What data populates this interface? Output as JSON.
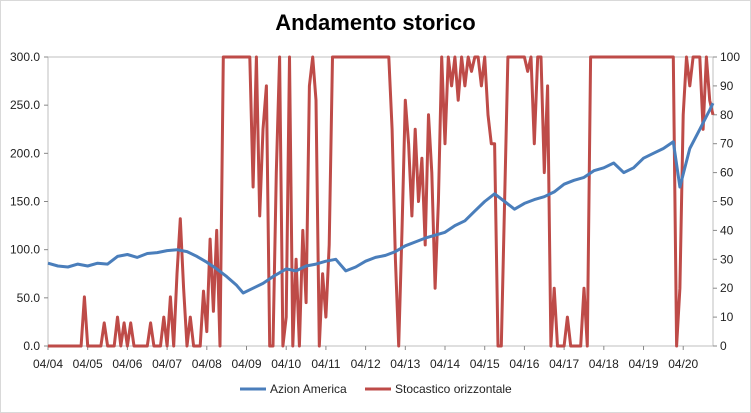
{
  "chart_data": {
    "type": "line",
    "title": "Andamento storico",
    "xlabel": "",
    "ylabel": "",
    "x_ticks": [
      "04/04",
      "04/05",
      "04/06",
      "04/07",
      "04/08",
      "04/09",
      "04/10",
      "04/11",
      "04/12",
      "04/13",
      "04/14",
      "04/15",
      "04/16",
      "04/17",
      "04/18",
      "04/19",
      "04/20"
    ],
    "x_range": [
      "04/04",
      "01/21"
    ],
    "y_left": {
      "min": 0,
      "max": 300,
      "ticks": [
        "0.0",
        "50.0",
        "100.0",
        "150.0",
        "200.0",
        "250.0",
        "300.0"
      ]
    },
    "y_right": {
      "min": 0,
      "max": 100,
      "ticks": [
        "0",
        "10",
        "20",
        "30",
        "40",
        "50",
        "60",
        "70",
        "80",
        "90",
        "100"
      ]
    },
    "legend_position": "bottom",
    "series": [
      {
        "name": "Azion America",
        "axis": "left",
        "color": "#4a7ebb",
        "points": [
          [
            "04/04",
            86
          ],
          [
            "07/04",
            83
          ],
          [
            "10/04",
            82
          ],
          [
            "01/05",
            85
          ],
          [
            "04/05",
            83
          ],
          [
            "07/05",
            86
          ],
          [
            "10/05",
            85
          ],
          [
            "01/06",
            93
          ],
          [
            "04/06",
            95
          ],
          [
            "07/06",
            92
          ],
          [
            "10/06",
            96
          ],
          [
            "01/07",
            97
          ],
          [
            "04/07",
            99
          ],
          [
            "07/07",
            100
          ],
          [
            "10/07",
            98
          ],
          [
            "01/08",
            93
          ],
          [
            "04/08",
            87
          ],
          [
            "07/08",
            80
          ],
          [
            "10/08",
            72
          ],
          [
            "01/09",
            63
          ],
          [
            "03/09",
            55
          ],
          [
            "06/09",
            60
          ],
          [
            "09/09",
            65
          ],
          [
            "12/09",
            72
          ],
          [
            "04/10",
            80
          ],
          [
            "07/10",
            78
          ],
          [
            "10/10",
            83
          ],
          [
            "01/11",
            85
          ],
          [
            "04/11",
            88
          ],
          [
            "07/11",
            90
          ],
          [
            "10/11",
            78
          ],
          [
            "01/12",
            82
          ],
          [
            "04/12",
            88
          ],
          [
            "07/12",
            92
          ],
          [
            "10/12",
            94
          ],
          [
            "01/13",
            98
          ],
          [
            "04/13",
            104
          ],
          [
            "07/13",
            108
          ],
          [
            "10/13",
            112
          ],
          [
            "01/14",
            115
          ],
          [
            "04/14",
            118
          ],
          [
            "07/14",
            125
          ],
          [
            "10/14",
            130
          ],
          [
            "01/15",
            140
          ],
          [
            "04/15",
            150
          ],
          [
            "07/15",
            158
          ],
          [
            "10/15",
            150
          ],
          [
            "01/16",
            142
          ],
          [
            "04/16",
            148
          ],
          [
            "07/16",
            152
          ],
          [
            "10/16",
            155
          ],
          [
            "01/17",
            160
          ],
          [
            "04/17",
            168
          ],
          [
            "07/17",
            172
          ],
          [
            "10/17",
            175
          ],
          [
            "01/18",
            182
          ],
          [
            "04/18",
            185
          ],
          [
            "07/18",
            190
          ],
          [
            "10/18",
            180
          ],
          [
            "01/19",
            185
          ],
          [
            "04/19",
            195
          ],
          [
            "07/19",
            200
          ],
          [
            "10/19",
            205
          ],
          [
            "01/20",
            212
          ],
          [
            "03/20",
            165
          ],
          [
            "06/20",
            205
          ],
          [
            "09/20",
            225
          ],
          [
            "12/20",
            245
          ],
          [
            "01/21",
            252
          ]
        ]
      },
      {
        "name": "Stocastico orizzontale",
        "axis": "right",
        "color": "#be4b48",
        "points": [
          [
            "04/04",
            0
          ],
          [
            "02/05",
            0
          ],
          [
            "03/05",
            17
          ],
          [
            "04/05",
            0
          ],
          [
            "08/05",
            0
          ],
          [
            "09/05",
            8
          ],
          [
            "10/05",
            0
          ],
          [
            "12/05",
            0
          ],
          [
            "01/06",
            10
          ],
          [
            "02/06",
            0
          ],
          [
            "03/06",
            8
          ],
          [
            "04/06",
            0
          ],
          [
            "05/06",
            8
          ],
          [
            "06/06",
            0
          ],
          [
            "10/06",
            0
          ],
          [
            "11/06",
            8
          ],
          [
            "12/06",
            0
          ],
          [
            "02/07",
            0
          ],
          [
            "03/07",
            10
          ],
          [
            "04/07",
            0
          ],
          [
            "05/07",
            17
          ],
          [
            "06/07",
            0
          ],
          [
            "07/07",
            25
          ],
          [
            "08/07",
            44
          ],
          [
            "09/07",
            20
          ],
          [
            "10/07",
            0
          ],
          [
            "11/07",
            10
          ],
          [
            "12/07",
            0
          ],
          [
            "02/08",
            0
          ],
          [
            "03/08",
            19
          ],
          [
            "04/08",
            5
          ],
          [
            "05/08",
            37
          ],
          [
            "06/08",
            12
          ],
          [
            "07/08",
            40
          ],
          [
            "08/08",
            0
          ],
          [
            "09/08",
            100
          ],
          [
            "05/09",
            100
          ],
          [
            "06/09",
            55
          ],
          [
            "07/09",
            100
          ],
          [
            "08/09",
            45
          ],
          [
            "09/09",
            75
          ],
          [
            "10/09",
            90
          ],
          [
            "11/09",
            0
          ],
          [
            "12/09",
            0
          ],
          [
            "01/10",
            60
          ],
          [
            "02/10",
            100
          ],
          [
            "03/10",
            0
          ],
          [
            "04/10",
            10
          ],
          [
            "05/10",
            100
          ],
          [
            "06/10",
            0
          ],
          [
            "07/10",
            30
          ],
          [
            "08/10",
            0
          ],
          [
            "09/10",
            40
          ],
          [
            "10/10",
            15
          ],
          [
            "11/10",
            90
          ],
          [
            "12/10",
            100
          ],
          [
            "01/11",
            85
          ],
          [
            "02/11",
            0
          ],
          [
            "03/11",
            25
          ],
          [
            "04/11",
            10
          ],
          [
            "05/11",
            35
          ],
          [
            "06/11",
            100
          ],
          [
            "07/11",
            100
          ],
          [
            "10/11",
            100
          ],
          [
            "11/11",
            100
          ],
          [
            "12/11",
            100
          ],
          [
            "01/12",
            100
          ],
          [
            "02/12",
            100
          ],
          [
            "03/12",
            100
          ],
          [
            "04/12",
            100
          ],
          [
            "05/12",
            100
          ],
          [
            "06/12",
            100
          ],
          [
            "07/12",
            100
          ],
          [
            "08/12",
            100
          ],
          [
            "09/12",
            100
          ],
          [
            "10/12",
            100
          ],
          [
            "11/12",
            100
          ],
          [
            "12/12",
            75
          ],
          [
            "01/13",
            30
          ],
          [
            "02/13",
            0
          ],
          [
            "03/13",
            40
          ],
          [
            "04/13",
            85
          ],
          [
            "05/13",
            70
          ],
          [
            "06/13",
            45
          ],
          [
            "07/13",
            75
          ],
          [
            "08/13",
            50
          ],
          [
            "09/13",
            65
          ],
          [
            "10/13",
            35
          ],
          [
            "11/13",
            80
          ],
          [
            "12/13",
            60
          ],
          [
            "01/14",
            20
          ],
          [
            "02/14",
            50
          ],
          [
            "03/14",
            100
          ],
          [
            "04/14",
            70
          ],
          [
            "05/14",
            100
          ],
          [
            "06/14",
            90
          ],
          [
            "07/14",
            100
          ],
          [
            "08/14",
            85
          ],
          [
            "09/14",
            100
          ],
          [
            "10/14",
            90
          ],
          [
            "11/14",
            100
          ],
          [
            "12/14",
            95
          ],
          [
            "01/15",
            100
          ],
          [
            "02/15",
            100
          ],
          [
            "03/15",
            90
          ],
          [
            "04/15",
            100
          ],
          [
            "05/15",
            80
          ],
          [
            "06/15",
            70
          ],
          [
            "07/15",
            70
          ],
          [
            "08/15",
            0
          ],
          [
            "09/15",
            0
          ],
          [
            "10/15",
            50
          ],
          [
            "11/15",
            100
          ],
          [
            "12/15",
            100
          ],
          [
            "01/16",
            100
          ],
          [
            "02/16",
            100
          ],
          [
            "03/16",
            100
          ],
          [
            "04/16",
            100
          ],
          [
            "05/16",
            95
          ],
          [
            "06/16",
            100
          ],
          [
            "07/16",
            70
          ],
          [
            "08/16",
            100
          ],
          [
            "09/16",
            100
          ],
          [
            "10/16",
            60
          ],
          [
            "11/16",
            90
          ],
          [
            "12/16",
            0
          ],
          [
            "01/17",
            20
          ],
          [
            "02/17",
            0
          ],
          [
            "03/17",
            0
          ],
          [
            "04/17",
            0
          ],
          [
            "05/17",
            10
          ],
          [
            "06/17",
            0
          ],
          [
            "07/17",
            0
          ],
          [
            "08/17",
            0
          ],
          [
            "09/17",
            0
          ],
          [
            "10/17",
            20
          ],
          [
            "11/17",
            0
          ],
          [
            "12/17",
            100
          ],
          [
            "04/18",
            100
          ],
          [
            "08/18",
            100
          ],
          [
            "12/18",
            100
          ],
          [
            "01/19",
            100
          ],
          [
            "02/19",
            100
          ],
          [
            "03/19",
            100
          ],
          [
            "04/19",
            100
          ],
          [
            "05/19",
            100
          ],
          [
            "06/19",
            100
          ],
          [
            "07/19",
            100
          ],
          [
            "08/19",
            100
          ],
          [
            "09/19",
            100
          ],
          [
            "10/19",
            100
          ],
          [
            "11/19",
            100
          ],
          [
            "12/19",
            100
          ],
          [
            "01/20",
            100
          ],
          [
            "02/20",
            0
          ],
          [
            "03/20",
            20
          ],
          [
            "04/20",
            80
          ],
          [
            "05/20",
            100
          ],
          [
            "06/20",
            90
          ],
          [
            "07/20",
            100
          ],
          [
            "08/20",
            100
          ],
          [
            "09/20",
            100
          ],
          [
            "10/20",
            75
          ],
          [
            "11/20",
            100
          ],
          [
            "12/20",
            85
          ],
          [
            "01/21",
            80
          ]
        ]
      }
    ]
  }
}
